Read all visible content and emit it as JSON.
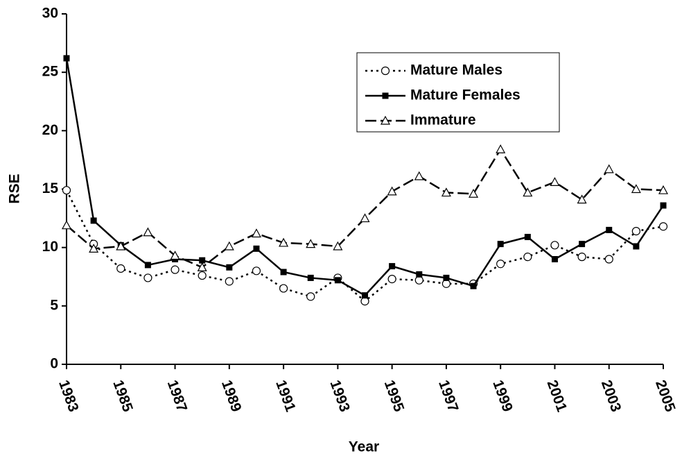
{
  "chart_data": {
    "type": "line",
    "xlabel": "Year",
    "ylabel": "RSE",
    "x": [
      1983,
      1984,
      1985,
      1986,
      1987,
      1988,
      1989,
      1990,
      1991,
      1992,
      1993,
      1994,
      1995,
      1996,
      1997,
      1998,
      1999,
      2000,
      2001,
      2002,
      2003,
      2004,
      2005
    ],
    "series": [
      {
        "name": "Mature Males",
        "color": "#000000",
        "dash": "dotted",
        "marker": "circle",
        "values": [
          14.9,
          10.3,
          8.2,
          7.4,
          8.1,
          7.6,
          7.1,
          8.0,
          6.5,
          5.8,
          7.4,
          5.4,
          7.3,
          7.2,
          6.9,
          6.9,
          8.6,
          9.2,
          10.2,
          9.2,
          9.0,
          11.4,
          11.8
        ]
      },
      {
        "name": "Mature Females",
        "color": "#000000",
        "dash": "solid",
        "marker": "square",
        "values": [
          26.2,
          12.3,
          10.2,
          8.5,
          9.0,
          8.9,
          8.3,
          9.9,
          7.9,
          7.4,
          7.2,
          5.9,
          8.4,
          7.7,
          7.4,
          6.7,
          10.3,
          10.9,
          9.0,
          10.3,
          11.5,
          10.1,
          13.6
        ]
      },
      {
        "name": "Immature",
        "color": "#000000",
        "dash": "dashed",
        "marker": "triangle",
        "values": [
          11.9,
          9.9,
          10.1,
          11.3,
          9.3,
          8.3,
          10.1,
          11.2,
          10.4,
          10.3,
          10.1,
          12.5,
          14.8,
          16.1,
          14.7,
          14.6,
          18.4,
          14.7,
          15.6,
          14.1,
          16.7,
          15.0,
          14.9
        ]
      }
    ],
    "xlim": [
      1983,
      2005
    ],
    "xticks": [
      1983,
      1985,
      1987,
      1989,
      1991,
      1993,
      1995,
      1997,
      1999,
      2001,
      2003,
      2005
    ],
    "ylim": [
      0,
      30
    ],
    "yticks": [
      0,
      5,
      10,
      15,
      20,
      25,
      30
    ],
    "grid": false,
    "legend": "upper right"
  }
}
